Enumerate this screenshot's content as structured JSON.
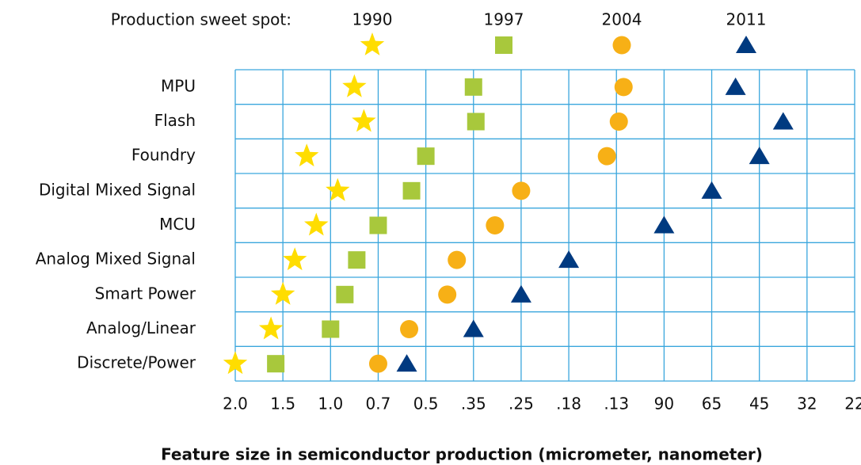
{
  "chart_data": {
    "type": "dot",
    "legend_title": "Production sweet spot:",
    "x_label": "Feature size in semiconductor production (micrometer, nanometer)",
    "categories": [
      "MPU",
      "Flash",
      "Foundry",
      "Digital Mixed Signal",
      "MCU",
      "Analog Mixed Signal",
      "Smart Power",
      "Analog/Linear",
      "Discrete/Power"
    ],
    "series": [
      {
        "name": "1990",
        "marker": "star",
        "color": "#ffdd00",
        "values": [
          2.5,
          2.7,
          1.5,
          2.15,
          1.7,
          1.25,
          1.0,
          0.75,
          0.0
        ]
      },
      {
        "name": "1997",
        "marker": "square",
        "color": "#a8c83c",
        "values": [
          5.0,
          5.05,
          4.0,
          3.7,
          3.0,
          2.55,
          2.3,
          2.0,
          0.85
        ]
      },
      {
        "name": "2004",
        "marker": "circle",
        "color": "#f7b016",
        "values": [
          8.15,
          8.05,
          7.8,
          6.0,
          5.45,
          4.65,
          4.45,
          3.65,
          3.0
        ]
      },
      {
        "name": "2011",
        "marker": "triangle",
        "color": "#003a80",
        "values": [
          10.5,
          11.5,
          11.0,
          10.0,
          9.0,
          7.0,
          6.0,
          5.0,
          3.6
        ]
      }
    ],
    "xlim": [
      0,
      13
    ],
    "xticks": [
      {
        "value": 0,
        "label": "2.0"
      },
      {
        "value": 1,
        "label": "1.5"
      },
      {
        "value": 2,
        "label": "1.0"
      },
      {
        "value": 3,
        "label": "0.7"
      },
      {
        "value": 4,
        "label": "0.5"
      },
      {
        "value": 5,
        "label": ".35"
      },
      {
        "value": 6,
        "label": ".25"
      },
      {
        "value": 7,
        "label": ".18"
      },
      {
        "value": 8,
        "label": ".13"
      },
      {
        "value": 9,
        "label": "90"
      },
      {
        "value": 10,
        "label": "65"
      },
      {
        "value": 11,
        "label": "45"
      },
      {
        "value": 12,
        "label": "32"
      },
      {
        "value": 13,
        "label": "22"
      }
    ],
    "grid": true,
    "grid_color": "#3aa6dd"
  }
}
